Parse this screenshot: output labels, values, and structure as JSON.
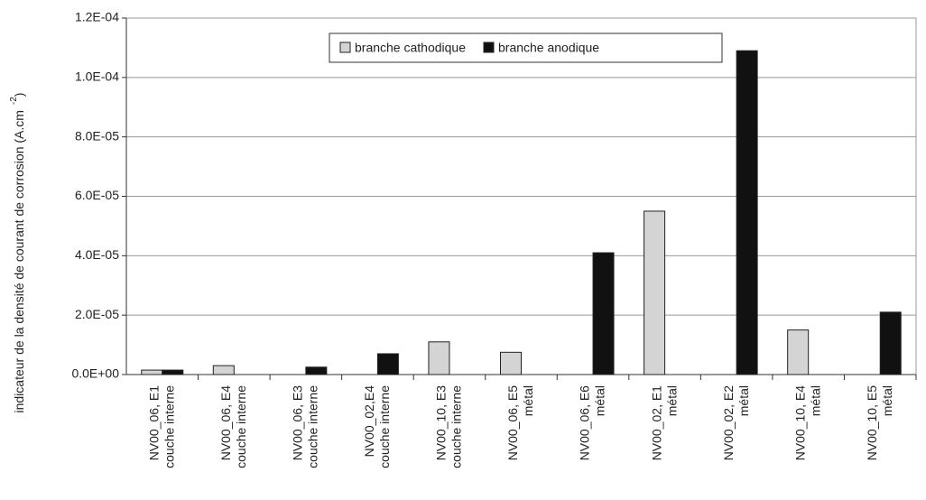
{
  "chart_data": {
    "type": "bar",
    "ylabel": "indicateur de la densité de courant de corrosion (A.cm",
    "ylabel_exponent": "-2",
    "ylabel_end": ")",
    "categories": [
      [
        "NV00_06, E1",
        "couche interne"
      ],
      [
        "NV00_06, E4",
        "couche interne"
      ],
      [
        "NV00_06, E3",
        "couche interne"
      ],
      [
        "NV00_02,E4",
        "couche interne"
      ],
      [
        "NV00_10, E3",
        "couche interne"
      ],
      [
        "NV00_06, E5",
        "métal"
      ],
      [
        "NV00_06, E6",
        "métal"
      ],
      [
        "NV00_02, E1",
        "métal"
      ],
      [
        "NV00_02, E2",
        "métal"
      ],
      [
        "NV00_10, E4",
        "métal"
      ],
      [
        "NV00_10, E5",
        "métal"
      ]
    ],
    "series": [
      {
        "name": "branche cathodique",
        "color": "#d4d4d4",
        "values": [
          1.5e-06,
          3e-06,
          null,
          null,
          1.1e-05,
          7.5e-06,
          null,
          5.5e-05,
          null,
          1.5e-05,
          null
        ]
      },
      {
        "name": "branche anodique",
        "color": "#111111",
        "values": [
          1.5e-06,
          null,
          2.5e-06,
          7e-06,
          null,
          null,
          4.1e-05,
          null,
          0.000109,
          null,
          2.1e-05
        ]
      }
    ],
    "ylim": [
      0,
      0.00012
    ],
    "yticks": [
      {
        "value": 0,
        "label": "0.0E+00"
      },
      {
        "value": 2e-05,
        "label": "2.0E-05"
      },
      {
        "value": 4e-05,
        "label": "4.0E-05"
      },
      {
        "value": 6e-05,
        "label": "6.0E-05"
      },
      {
        "value": 8e-05,
        "label": "8.0E-05"
      },
      {
        "value": 0.0001,
        "label": "1.0E-04"
      },
      {
        "value": 0.00012,
        "label": "1.2E-04"
      }
    ],
    "grid": true,
    "legend_position": "top"
  }
}
